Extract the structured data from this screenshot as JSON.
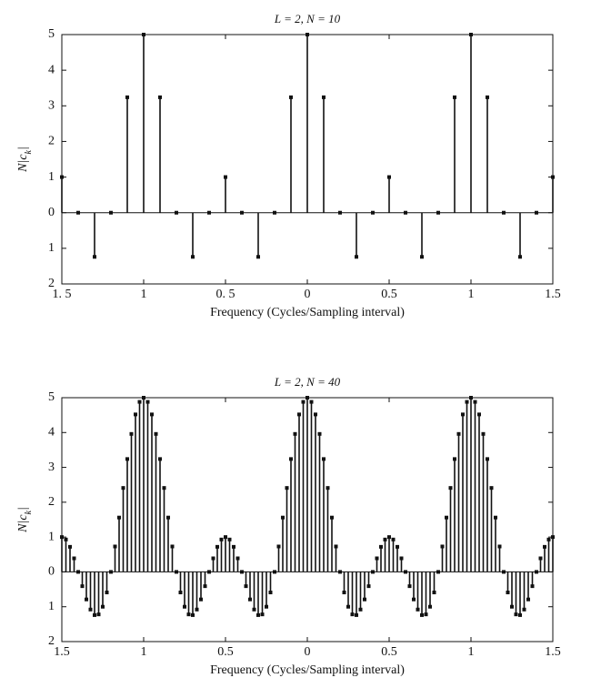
{
  "chart_data": [
    {
      "type": "stem",
      "title": "L = 2, N = 10",
      "xlabel": "Frequency (Cycles/Sampling interval)",
      "ylabel": [
        "N|c",
        "k",
        "|"
      ],
      "x": [
        -1.5,
        -1.4,
        -1.3,
        -1.2,
        -1.1,
        -1,
        -0.9,
        -0.8,
        -0.7,
        -0.6,
        -0.5,
        -0.4,
        -0.3,
        -0.2,
        -0.1,
        0,
        0.1,
        0.2,
        0.3,
        0.4,
        0.5,
        0.6,
        0.7,
        0.8,
        0.9,
        1,
        1.1,
        1.2,
        1.3,
        1.4,
        1.5
      ],
      "values": [
        1,
        0,
        -1.24,
        0,
        3.24,
        5,
        3.24,
        0,
        -1.24,
        0,
        1,
        0,
        -1.24,
        0,
        3.24,
        5,
        3.24,
        0,
        -1.24,
        0,
        1,
        0,
        -1.24,
        0,
        3.24,
        5,
        3.24,
        0,
        -1.24,
        0,
        1
      ],
      "color": "#111111",
      "xlim": [
        -1.5,
        1.5
      ],
      "ylim": [
        -2,
        5
      ],
      "xticks": [
        {
          "value": -1.5,
          "label": "1. 5"
        },
        {
          "value": -1,
          "label": "1"
        },
        {
          "value": -0.5,
          "label": "0. 5"
        },
        0,
        0.5,
        1,
        1.5
      ],
      "yticks": [
        {
          "value": -2,
          "label": "2"
        },
        {
          "value": -1,
          "label": "1"
        },
        0,
        1,
        2,
        3,
        4,
        5
      ]
    },
    {
      "type": "stem",
      "title": "L = 2, N = 40",
      "xlabel": "Frequency (Cycles/Sampling interval)",
      "ylabel": [
        "N|c",
        "k",
        "|"
      ],
      "x": [
        -1.5,
        -1.475,
        -1.45,
        -1.425,
        -1.4,
        -1.375,
        -1.35,
        -1.325,
        -1.3,
        -1.275,
        -1.25,
        -1.225,
        -1.2,
        -1.175,
        -1.15,
        -1.125,
        -1.1,
        -1.075,
        -1.05,
        -1.025,
        -1,
        -0.975,
        -0.95,
        -0.925,
        -0.9,
        -0.875,
        -0.85,
        -0.825,
        -0.8,
        -0.775,
        -0.75,
        -0.725,
        -0.7,
        -0.675,
        -0.65,
        -0.625,
        -0.6,
        -0.575,
        -0.55,
        -0.525,
        -0.5,
        -0.475,
        -0.45,
        -0.425,
        -0.4,
        -0.375,
        -0.35,
        -0.325,
        -0.3,
        -0.275,
        -0.25,
        -0.225,
        -0.2,
        -0.175,
        -0.15,
        -0.125,
        -0.1,
        -0.075,
        -0.05,
        -0.025,
        0,
        0.025,
        0.05,
        0.075,
        0.1,
        0.125,
        0.15,
        0.175,
        0.2,
        0.225,
        0.25,
        0.275,
        0.3,
        0.325,
        0.35,
        0.375,
        0.4,
        0.425,
        0.45,
        0.475,
        0.5,
        0.525,
        0.55,
        0.575,
        0.6,
        0.625,
        0.65,
        0.675,
        0.7,
        0.725,
        0.75,
        0.775,
        0.8,
        0.825,
        0.85,
        0.875,
        0.9,
        0.925,
        0.95,
        0.975,
        1,
        1.025,
        1.05,
        1.075,
        1.1,
        1.125,
        1.15,
        1.175,
        1.2,
        1.225,
        1.25,
        1.275,
        1.3,
        1.325,
        1.35,
        1.375,
        1.4,
        1.425,
        1.45,
        1.475,
        1.5
      ],
      "values": [
        1,
        0.93,
        0.72,
        0.39,
        0,
        -0.41,
        -0.79,
        -1.08,
        -1.24,
        -1.22,
        -1,
        -0.59,
        0,
        0.73,
        1.56,
        2.41,
        3.24,
        3.96,
        4.52,
        4.88,
        5,
        4.88,
        4.52,
        3.96,
        3.24,
        2.41,
        1.56,
        0.73,
        0,
        -0.59,
        -1,
        -1.22,
        -1.24,
        -1.08,
        -0.79,
        -0.41,
        0,
        0.39,
        0.72,
        0.93,
        1,
        0.93,
        0.72,
        0.39,
        0,
        -0.41,
        -0.79,
        -1.08,
        -1.24,
        -1.22,
        -1,
        -0.59,
        0,
        0.73,
        1.56,
        2.41,
        3.24,
        3.96,
        4.52,
        4.88,
        5,
        4.88,
        4.52,
        3.96,
        3.24,
        2.41,
        1.56,
        0.73,
        0,
        -0.59,
        -1,
        -1.22,
        -1.24,
        -1.08,
        -0.79,
        -0.41,
        0,
        0.39,
        0.72,
        0.93,
        1,
        0.93,
        0.72,
        0.39,
        0,
        -0.41,
        -0.79,
        -1.08,
        -1.24,
        -1.22,
        -1,
        -0.59,
        0,
        0.73,
        1.56,
        2.41,
        3.24,
        3.96,
        4.52,
        4.88,
        5,
        4.88,
        4.52,
        3.96,
        3.24,
        2.41,
        1.56,
        0.73,
        0,
        -0.59,
        -1,
        -1.22,
        -1.24,
        -1.08,
        -0.79,
        -0.41,
        0,
        0.39,
        0.72,
        0.93,
        1
      ],
      "color": "#111111",
      "xlim": [
        -1.5,
        1.5
      ],
      "ylim": [
        -2,
        5
      ],
      "xticks": [
        {
          "value": -1.5,
          "label": "1.5"
        },
        {
          "value": -1,
          "label": "1"
        },
        {
          "value": -0.5,
          "label": "0.5"
        },
        0,
        0.5,
        1,
        1.5
      ],
      "yticks": [
        {
          "value": -2,
          "label": "2"
        },
        {
          "value": -1,
          "label": "1"
        },
        0,
        1,
        2,
        3,
        4,
        5
      ]
    }
  ]
}
